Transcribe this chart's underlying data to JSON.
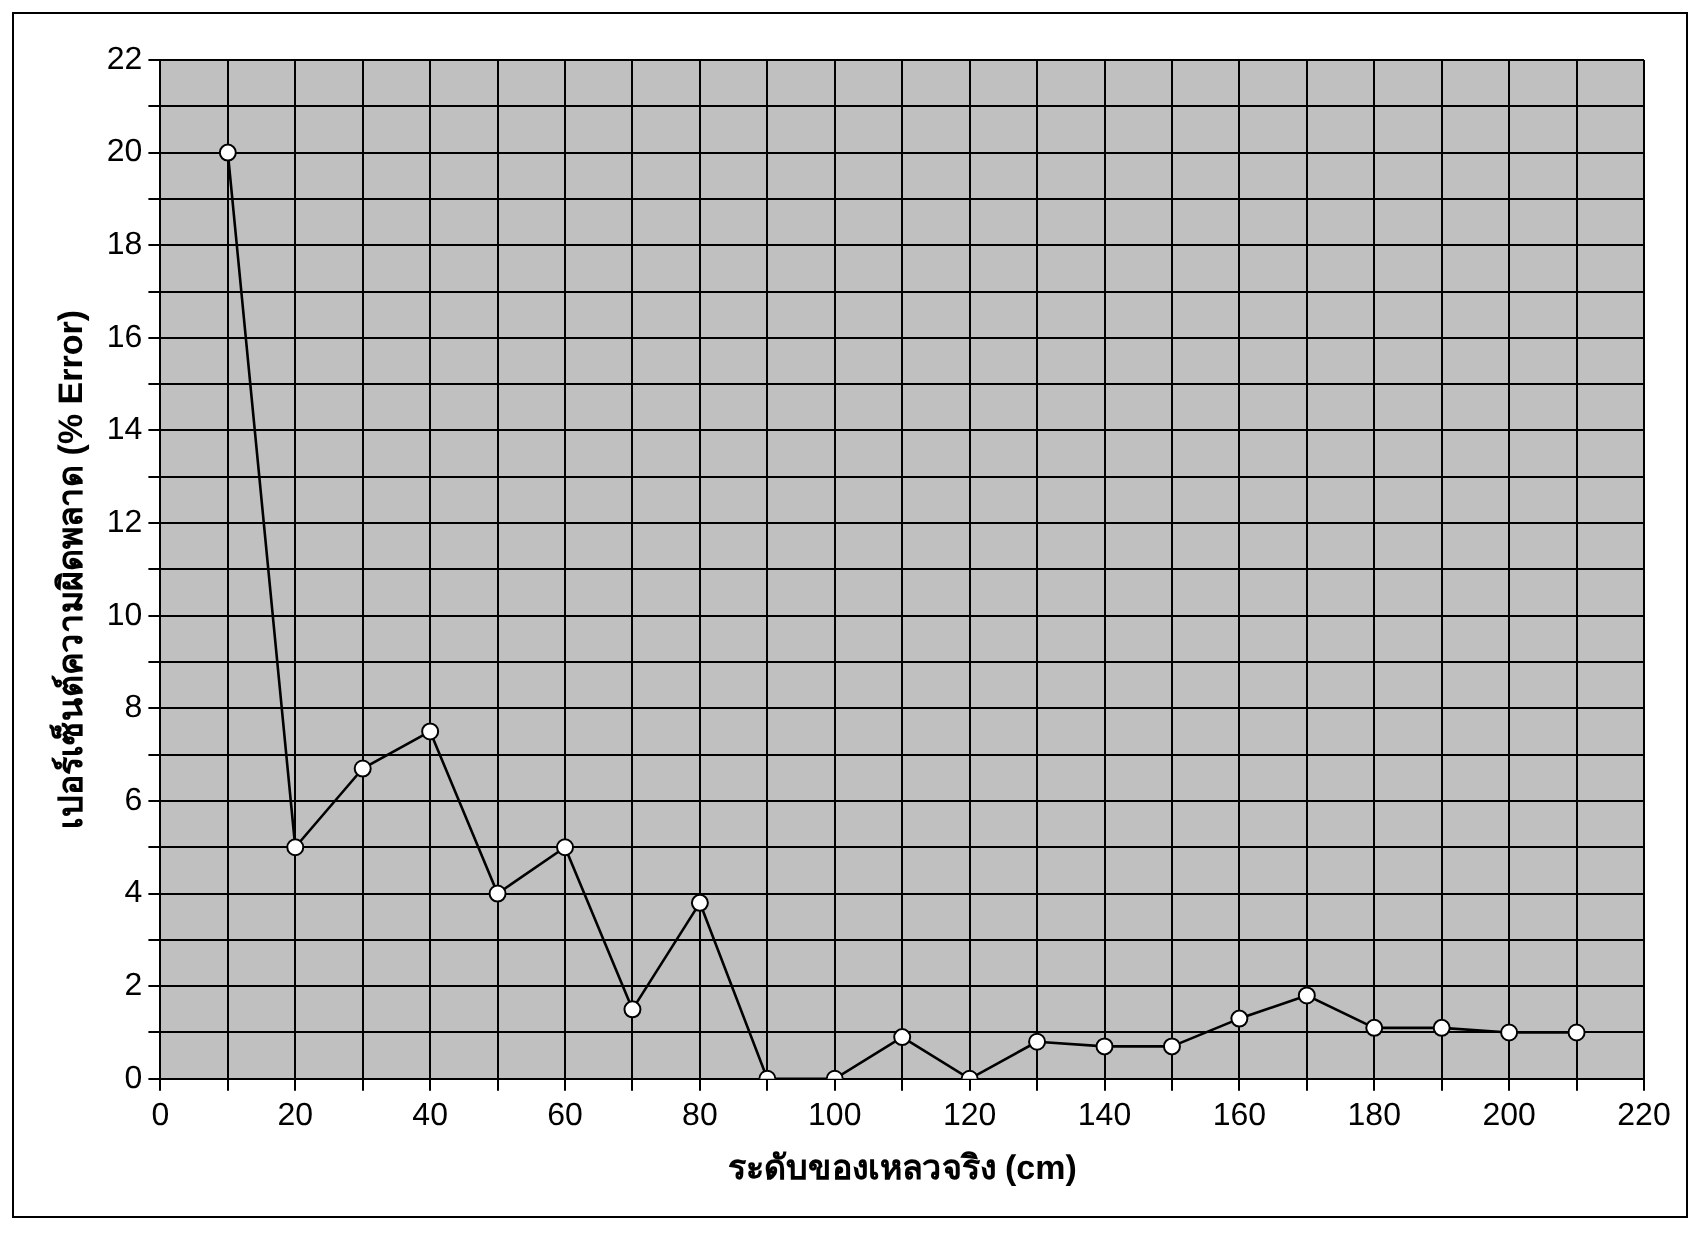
{
  "chart_data": {
    "type": "line",
    "xlabel": "ระดับของเหลวจริง (cm)",
    "ylabel": "เปอร์เซ็นต์ความผิดพลาด (% Error)",
    "x": [
      10,
      20,
      30,
      40,
      50,
      60,
      70,
      80,
      90,
      100,
      110,
      120,
      130,
      140,
      150,
      160,
      170,
      180,
      190,
      200,
      210
    ],
    "series": [
      {
        "color": "#000000",
        "values": [
          20,
          5.0,
          6.7,
          7.5,
          4.0,
          5.0,
          1.5,
          3.8,
          0,
          0,
          0.9,
          0,
          0.8,
          0.7,
          0.7,
          1.3,
          1.8,
          1.1,
          1.1,
          1.0,
          1.0
        ]
      }
    ],
    "xlim": [
      0,
      220
    ],
    "xticks": [
      0,
      {
        "value": 10,
        "label": null
      },
      20,
      {
        "value": 30,
        "label": null
      },
      40,
      {
        "value": 50,
        "label": null
      },
      60,
      {
        "value": 70,
        "label": null
      },
      80,
      {
        "value": 90,
        "label": null
      },
      100,
      {
        "value": 110,
        "label": null
      },
      120,
      {
        "value": 130,
        "label": null
      },
      140,
      {
        "value": 150,
        "label": null
      },
      160,
      {
        "value": 170,
        "label": null
      },
      180,
      {
        "value": 190,
        "label": null
      },
      200,
      {
        "value": 210,
        "label": null
      },
      220
    ],
    "ylim": [
      0,
      22
    ],
    "yticks": [
      0,
      {
        "value": 1,
        "label": null
      },
      2,
      {
        "value": 3,
        "label": null
      },
      4,
      {
        "value": 5,
        "label": null
      },
      6,
      {
        "value": 7,
        "label": null
      },
      8,
      {
        "value": 9,
        "label": null
      },
      10,
      {
        "value": 11,
        "label": null
      },
      12,
      {
        "value": 13,
        "label": null
      },
      14,
      {
        "value": 15,
        "label": null
      },
      16,
      {
        "value": 17,
        "label": null
      },
      18,
      {
        "value": 19,
        "label": null
      },
      20,
      {
        "value": 21,
        "label": null
      },
      22
    ],
    "grid": true,
    "legend": false,
    "marker": "circle",
    "line_style": "solid"
  }
}
